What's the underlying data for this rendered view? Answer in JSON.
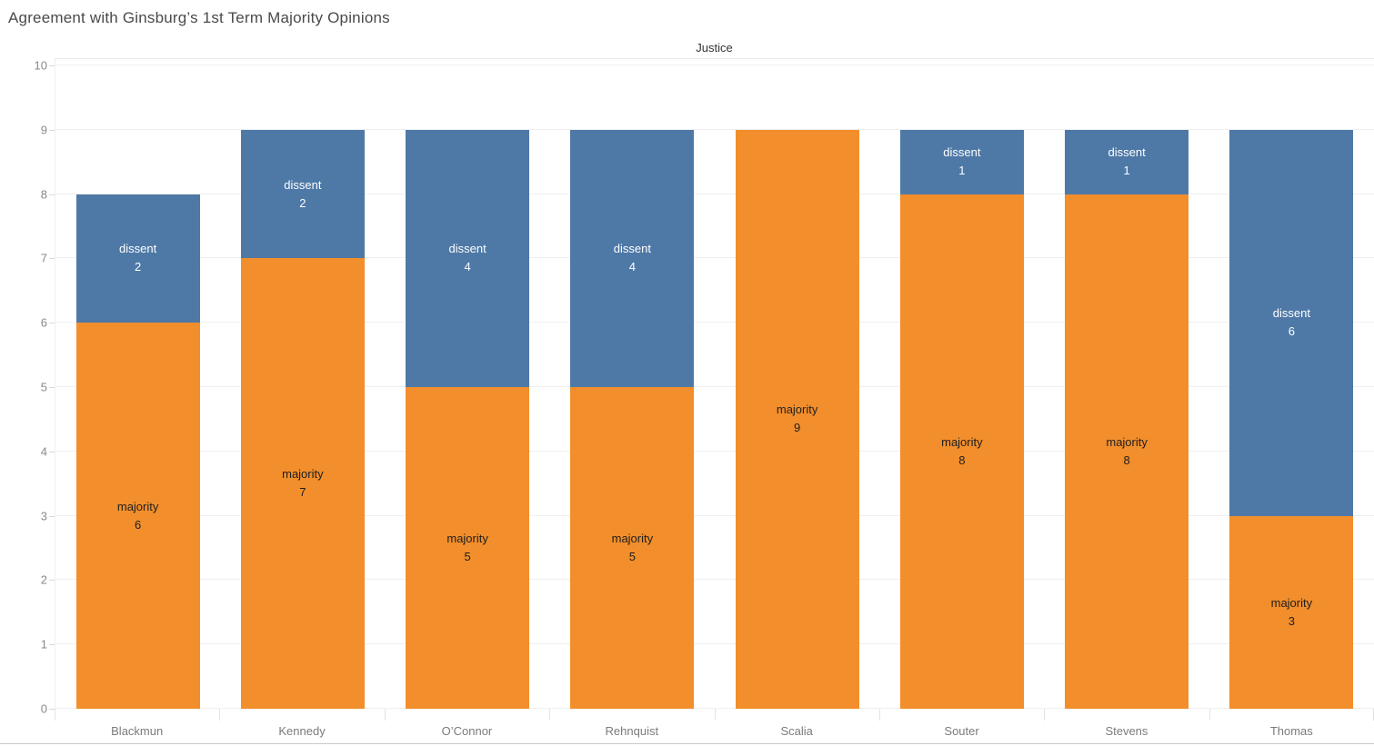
{
  "title": "Agreement with Ginsburg’s 1st Term Majority Opinions",
  "chart_data": {
    "type": "bar",
    "stacked": true,
    "orientation": "vertical",
    "title": "Agreement with Ginsburg’s 1st Term Majority Opinions",
    "column_axis_header": "Justice",
    "categories": [
      "Blackmun",
      "Kennedy",
      "O’Connor",
      "Rehnquist",
      "Scalia",
      "Souter",
      "Stevens",
      "Thomas"
    ],
    "series": [
      {
        "name": "majority",
        "color": "#f28e2b",
        "label_text_color": "#1f1f1f",
        "values": [
          6,
          7,
          5,
          5,
          9,
          8,
          8,
          3
        ]
      },
      {
        "name": "dissent",
        "color": "#4e79a7",
        "label_text_color": "#ffffff",
        "values": [
          2,
          2,
          4,
          4,
          0,
          1,
          1,
          6
        ]
      }
    ],
    "totals": [
      8,
      9,
      9,
      9,
      9,
      9,
      9,
      9
    ],
    "ylim": [
      0,
      10
    ],
    "yticks": [
      0,
      1,
      2,
      3,
      4,
      5,
      6,
      7,
      8,
      9,
      10
    ],
    "grid": true,
    "legend": "none",
    "segment_labels": "series name over value, centered in segment, hidden when value is 0"
  },
  "colors": {
    "majority_bar": "#f28e2b",
    "dissent_bar": "#4e79a7",
    "gridline": "#efefef",
    "header_border": "#e9e9e9",
    "axis_tick": "#d9d9d9",
    "title_text": "#4a4a4a",
    "column_header_text": "#333333",
    "ytick_label_text": "#898989",
    "category_label_text": "#7b7b7b",
    "window_bottom_border": "#c9c9c9"
  }
}
